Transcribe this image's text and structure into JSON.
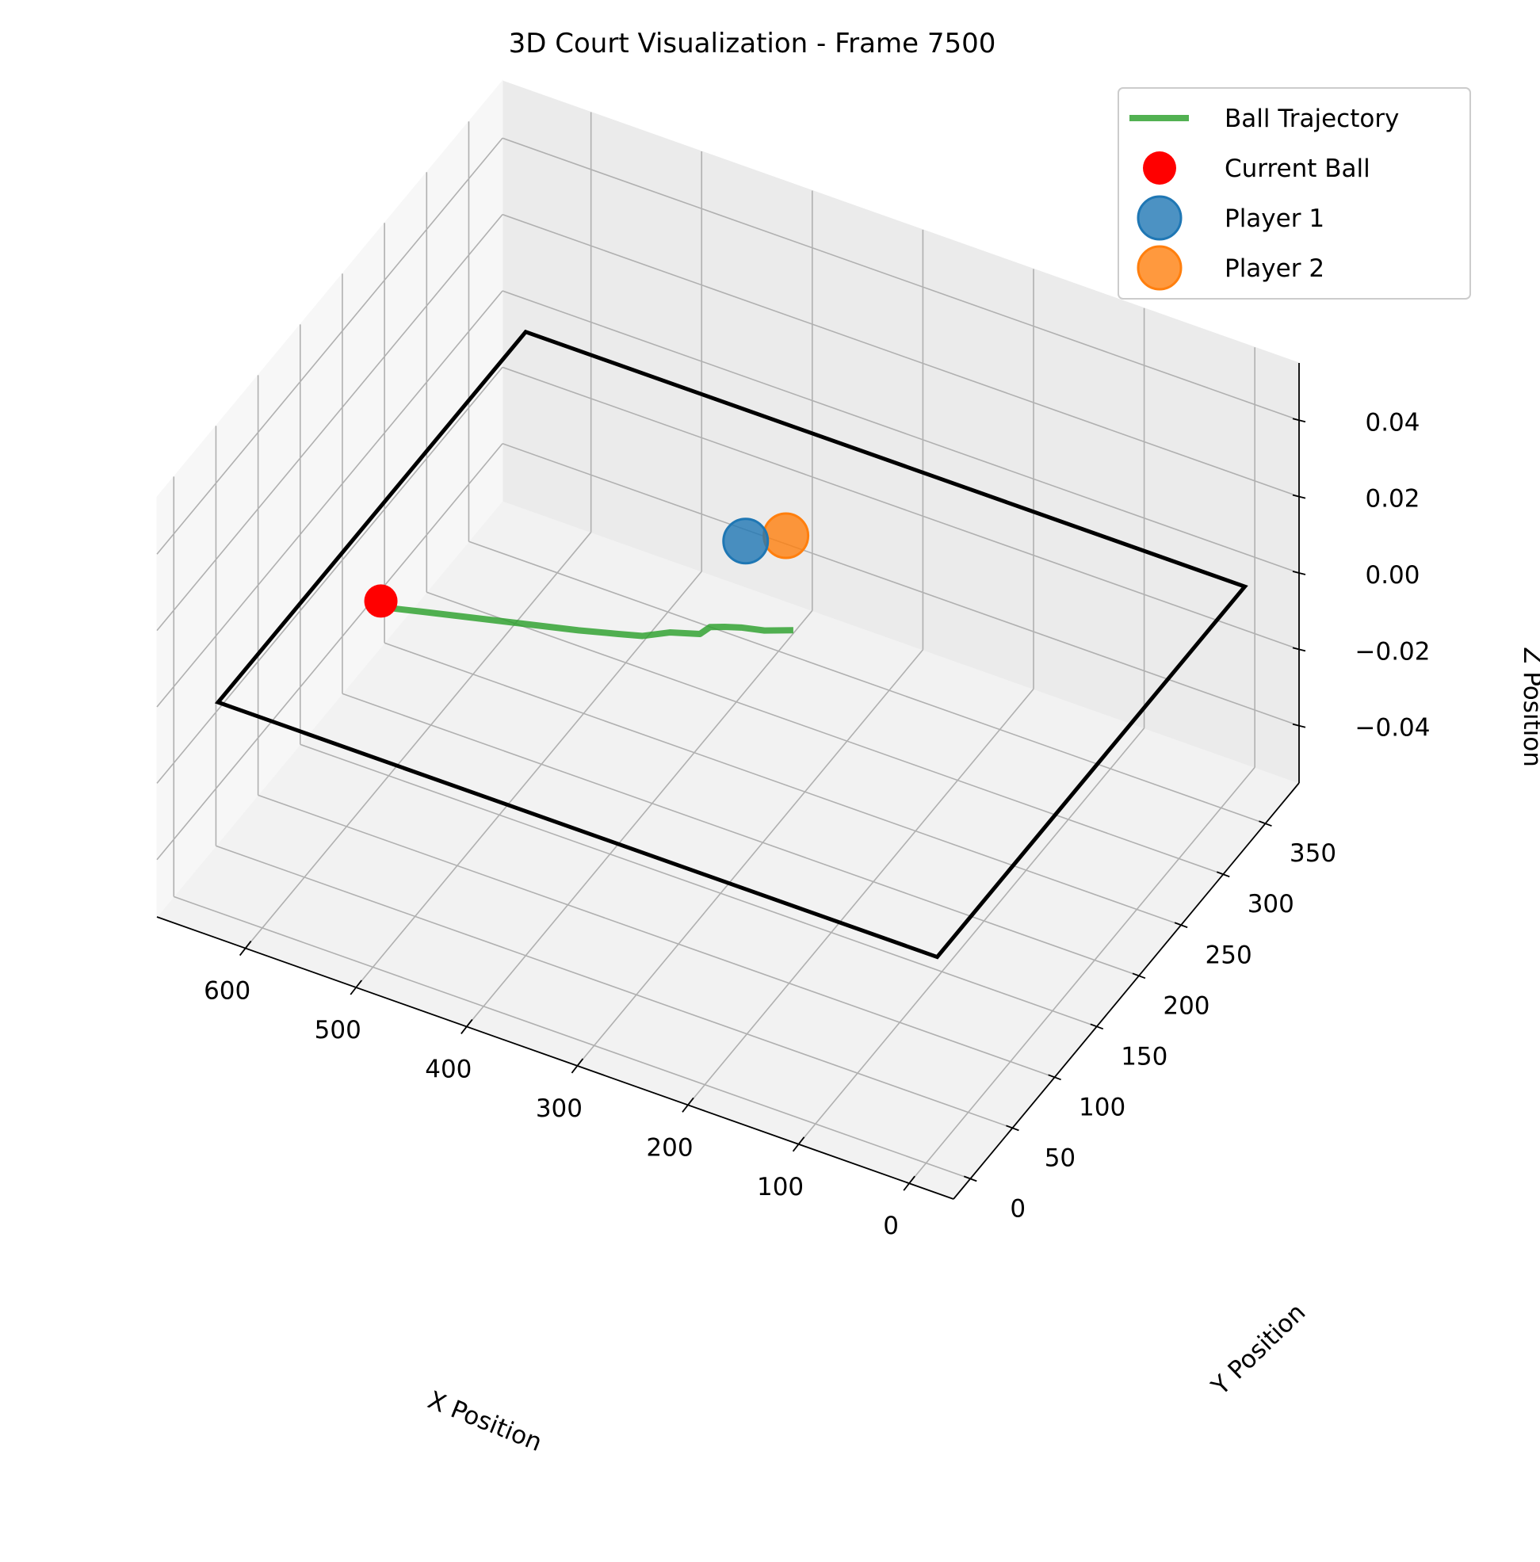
{
  "chart_data": {
    "type": "scatter",
    "projection": "3d",
    "title": "3D Court Visualization - Frame 7500",
    "xlabel": "X Position",
    "ylabel": "Y Position",
    "zlabel": "Z Position",
    "xlim": [
      -40,
      680
    ],
    "ylim": [
      -20,
      390
    ],
    "zlim": [
      -0.055,
      0.055
    ],
    "x_ticks": [
      0,
      100,
      200,
      300,
      400,
      500,
      600
    ],
    "y_ticks": [
      0,
      50,
      100,
      150,
      200,
      250,
      300,
      350
    ],
    "z_ticks": [
      -0.04,
      -0.02,
      0.0,
      0.02,
      0.04
    ],
    "x_tick_labels": [
      "0",
      "100",
      "200",
      "300",
      "400",
      "500",
      "600"
    ],
    "y_tick_labels": [
      "0",
      "50",
      "100",
      "150",
      "200",
      "250",
      "300",
      "350"
    ],
    "z_tick_labels": [
      "−0.04",
      "−0.02",
      "0.00",
      "0.02",
      "0.04"
    ],
    "grid": true,
    "legend_position": "top-right",
    "court": {
      "color": "#000000",
      "corners": [
        [
          -10,
          0,
          0
        ],
        [
          640,
          0,
          0
        ],
        [
          640,
          365,
          0
        ],
        [
          -10,
          365,
          0
        ]
      ]
    },
    "series": [
      {
        "name": "Ball Trajectory",
        "kind": "line",
        "color": "#2ca02c",
        "points": [
          [
            280,
            210,
            0
          ],
          [
            300,
            202,
            0
          ],
          [
            318,
            198,
            0
          ],
          [
            330,
            194,
            0
          ],
          [
            340,
            190,
            0
          ],
          [
            343,
            182,
            0
          ],
          [
            365,
            175,
            0
          ],
          [
            382,
            165,
            0
          ],
          [
            400,
            160,
            0
          ],
          [
            430,
            152,
            0
          ],
          [
            460,
            145,
            0
          ],
          [
            490,
            138,
            0
          ],
          [
            520,
            131,
            0
          ],
          [
            550,
            124,
            0
          ],
          [
            575,
            118,
            0
          ]
        ]
      },
      {
        "name": "Current Ball",
        "kind": "point",
        "color": "#ff0000",
        "points": [
          [
            585,
            121,
            0
          ]
        ]
      },
      {
        "name": "Player 1",
        "kind": "point",
        "color": "#1f77b4",
        "points": [
          [
            365,
            265,
            0
          ]
        ]
      },
      {
        "name": "Player 2",
        "kind": "point",
        "color": "#ff7f0e",
        "points": [
          [
            340,
            280,
            0
          ]
        ]
      }
    ]
  }
}
